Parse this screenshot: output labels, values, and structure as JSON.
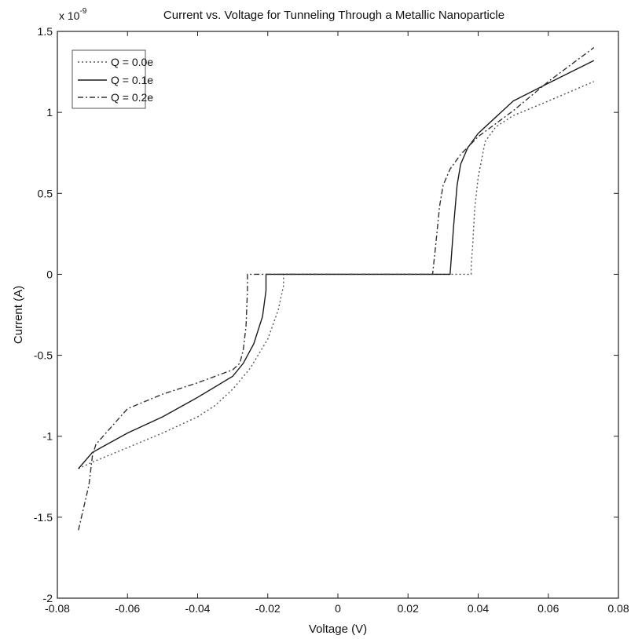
{
  "chart_data": {
    "type": "line",
    "title": "Current vs. Voltage for Tunneling Through a Metallic Nanoparticle",
    "xlabel": "Voltage (V)",
    "ylabel": "Current (A)",
    "y_multiplier_label": "x 10",
    "y_multiplier_exponent": "-9",
    "xlim": [
      -0.08,
      0.08
    ],
    "ylim": [
      -2,
      1.5
    ],
    "x_ticks": [
      -0.08,
      -0.06,
      -0.04,
      -0.02,
      0,
      0.02,
      0.04,
      0.06,
      0.08
    ],
    "x_tick_labels": [
      "-0.08",
      "-0.06",
      "-0.04",
      "-0.02",
      "0",
      "0.02",
      "0.04",
      "0.06",
      "0.08"
    ],
    "y_ticks": [
      -2,
      -1.5,
      -1,
      -0.5,
      0,
      0.5,
      1,
      1.5
    ],
    "y_tick_labels": [
      "-2",
      "-1.5",
      "-1",
      "-0.5",
      "0",
      "0.5",
      "1",
      "1.5"
    ],
    "grid": false,
    "legend_position": "top-left",
    "series": [
      {
        "name": "Q = 0.0e",
        "color": "#555555",
        "dash": "2,3",
        "x": [
          -0.074,
          -0.07,
          -0.06,
          -0.05,
          -0.04,
          -0.035,
          -0.03,
          -0.025,
          -0.02,
          -0.017,
          -0.0155,
          -0.0155,
          0.0,
          0.02,
          0.038,
          0.038,
          0.0385,
          0.039,
          0.04,
          0.042,
          0.045,
          0.05,
          0.06,
          0.073
        ],
        "y": [
          -1.2,
          -1.16,
          -1.07,
          -0.98,
          -0.88,
          -0.81,
          -0.71,
          -0.58,
          -0.4,
          -0.22,
          -0.07,
          0.0,
          0.0,
          0.0,
          0.0,
          0.05,
          0.2,
          0.4,
          0.6,
          0.82,
          0.91,
          0.98,
          1.07,
          1.19
        ]
      },
      {
        "name": "Q = 0.1e",
        "color": "#1a1a1a",
        "dash": "",
        "x": [
          -0.074,
          -0.07,
          -0.06,
          -0.05,
          -0.04,
          -0.03,
          -0.027,
          -0.024,
          -0.0215,
          -0.0205,
          -0.0205,
          0.0,
          0.02,
          0.032,
          0.033,
          0.034,
          0.035,
          0.037,
          0.04,
          0.045,
          0.05,
          0.06,
          0.073
        ],
        "y": [
          -1.2,
          -1.1,
          -0.98,
          -0.88,
          -0.76,
          -0.63,
          -0.55,
          -0.43,
          -0.26,
          -0.1,
          0.0,
          0.0,
          0.0,
          0.0,
          0.3,
          0.55,
          0.68,
          0.78,
          0.87,
          0.97,
          1.07,
          1.18,
          1.32
        ]
      },
      {
        "name": "Q = 0.2e",
        "color": "#333333",
        "dash": "7,3,2,3",
        "x": [
          -0.074,
          -0.071,
          -0.07,
          -0.069,
          -0.06,
          -0.05,
          -0.04,
          -0.03,
          -0.028,
          -0.027,
          -0.0262,
          -0.0258,
          -0.0258,
          0.0,
          0.02,
          0.027,
          0.028,
          0.029,
          0.03,
          0.032,
          0.035,
          0.04,
          0.05,
          0.06,
          0.073
        ],
        "y": [
          -1.58,
          -1.3,
          -1.12,
          -1.05,
          -0.83,
          -0.74,
          -0.67,
          -0.59,
          -0.55,
          -0.47,
          -0.32,
          -0.1,
          0.0,
          0.0,
          0.0,
          0.0,
          0.2,
          0.42,
          0.55,
          0.65,
          0.74,
          0.85,
          1.01,
          1.19,
          1.4
        ]
      }
    ]
  }
}
